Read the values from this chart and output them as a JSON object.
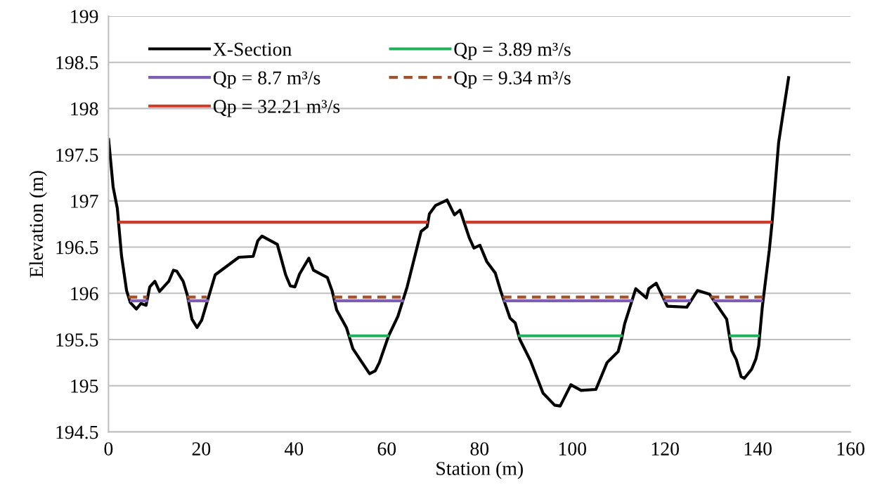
{
  "chart_data": {
    "type": "line",
    "xlabel": "Station (m)",
    "ylabel": "Elevation (m)",
    "xlim": [
      0,
      160
    ],
    "xticks": [
      0,
      20,
      40,
      60,
      80,
      100,
      120,
      140,
      160
    ],
    "ylim": [
      194.5,
      199
    ],
    "yticks": [
      194.5,
      195,
      195.5,
      196,
      196.5,
      197,
      197.5,
      198,
      198.5,
      199
    ],
    "grid": "y",
    "legend": "top left",
    "marker": "none",
    "series": [
      {
        "name": "X-Section",
        "color": "#000000",
        "line_style": "solid",
        "x": [
          0,
          1.0,
          1.9,
          2.8,
          3.9,
          4.7,
          6.0,
          7.0,
          8.1,
          8.9,
          10.0,
          11.0,
          13.0,
          14.0,
          14.7,
          16.1,
          17.0,
          18.0,
          19.1,
          20.1,
          23.0,
          28.1,
          31.2,
          32.2,
          33.1,
          36.4,
          38.2,
          39.2,
          40.2,
          41.2,
          43.2,
          44.2,
          47.2,
          48.2,
          49.2,
          51.3,
          52.7,
          56.3,
          57.5,
          58.4,
          60.4,
          62.4,
          64.4,
          67.4,
          68.7,
          69.2,
          70.5,
          73.0,
          74.6,
          75.8,
          77.8,
          78.8,
          80.1,
          81.6,
          83.4,
          84.6,
          86.6,
          87.7,
          88.7,
          91.0,
          93.7,
          96.2,
          97.4,
          99.7,
          101.9,
          105.1,
          107.5,
          109.9,
          110.6,
          111.3,
          113.7,
          116.0,
          116.5,
          118.1,
          120.5,
          124.7,
          127.0,
          129.6,
          133.3,
          134.4,
          135.4,
          136.4,
          137.1,
          138.7,
          139.6,
          140.2,
          141.0,
          142.5,
          143.1,
          144.5,
          145.5,
          146.7
        ],
        "values": [
          197.68,
          197.15,
          196.92,
          196.41,
          196.03,
          195.9,
          195.83,
          195.89,
          195.87,
          196.07,
          196.13,
          196.02,
          196.13,
          196.25,
          196.24,
          196.13,
          195.98,
          195.72,
          195.63,
          195.71,
          196.2,
          196.39,
          196.4,
          196.57,
          196.62,
          196.53,
          196.2,
          196.08,
          196.07,
          196.21,
          196.38,
          196.25,
          196.17,
          196.03,
          195.82,
          195.63,
          195.4,
          195.13,
          195.16,
          195.25,
          195.54,
          195.75,
          196.07,
          196.67,
          196.72,
          196.86,
          196.95,
          197.01,
          196.85,
          196.9,
          196.6,
          196.49,
          196.52,
          196.34,
          196.22,
          196.02,
          195.73,
          195.68,
          195.5,
          195.27,
          194.92,
          194.79,
          194.78,
          195.01,
          194.95,
          194.96,
          195.25,
          195.37,
          195.5,
          195.67,
          196.05,
          195.95,
          196.05,
          196.11,
          195.86,
          195.85,
          196.03,
          195.99,
          195.72,
          195.38,
          195.28,
          195.1,
          195.08,
          195.18,
          195.29,
          195.43,
          195.86,
          196.47,
          196.77,
          197.63,
          197.96,
          198.35
        ]
      },
      {
        "name": "Qp = 3.89 m³/s",
        "color": "#21b15c",
        "line_style": "solid",
        "x": [
          51.8,
          60.5,
          null,
          88.3,
          110.9,
          null,
          133.8,
          140.4
        ],
        "values": [
          195.54,
          195.54,
          null,
          195.54,
          195.54,
          null,
          195.54,
          195.54
        ]
      },
      {
        "name": "Qp = 8.7 m³/s",
        "color": "#7f5fb4",
        "line_style": "solid",
        "x": [
          4.6,
          8.5,
          null,
          17.0,
          21.6,
          null,
          48.7,
          63.7,
          null,
          85.1,
          113.1,
          null,
          119.7,
          125.6,
          null,
          130.3,
          141.1
        ],
        "values": [
          195.92,
          195.92,
          null,
          195.92,
          195.92,
          null,
          195.92,
          195.92,
          null,
          195.92,
          195.92,
          null,
          195.92,
          195.92,
          null,
          195.92,
          195.92
        ]
      },
      {
        "name": "Qp = 9.34 m³/s",
        "color": "#a0522d",
        "line_style": "dashed",
        "x": [
          4.3,
          8.4,
          null,
          16.9,
          21.2,
          null,
          48.5,
          63.9,
          null,
          85.0,
          113.1,
          null,
          119.5,
          125.9,
          null,
          129.8,
          141.1
        ],
        "values": [
          195.96,
          195.96,
          null,
          195.96,
          195.96,
          null,
          195.96,
          195.96,
          null,
          195.96,
          195.96,
          null,
          195.96,
          195.96,
          null,
          195.96,
          195.96
        ]
      },
      {
        "name": "Qp = 32.21 m³/s",
        "color": "#d03a2a",
        "line_style": "solid",
        "x": [
          2.1,
          68.9,
          null,
          77.0,
          143.1
        ],
        "values": [
          196.77,
          196.77,
          null,
          196.77,
          196.77
        ]
      }
    ]
  }
}
